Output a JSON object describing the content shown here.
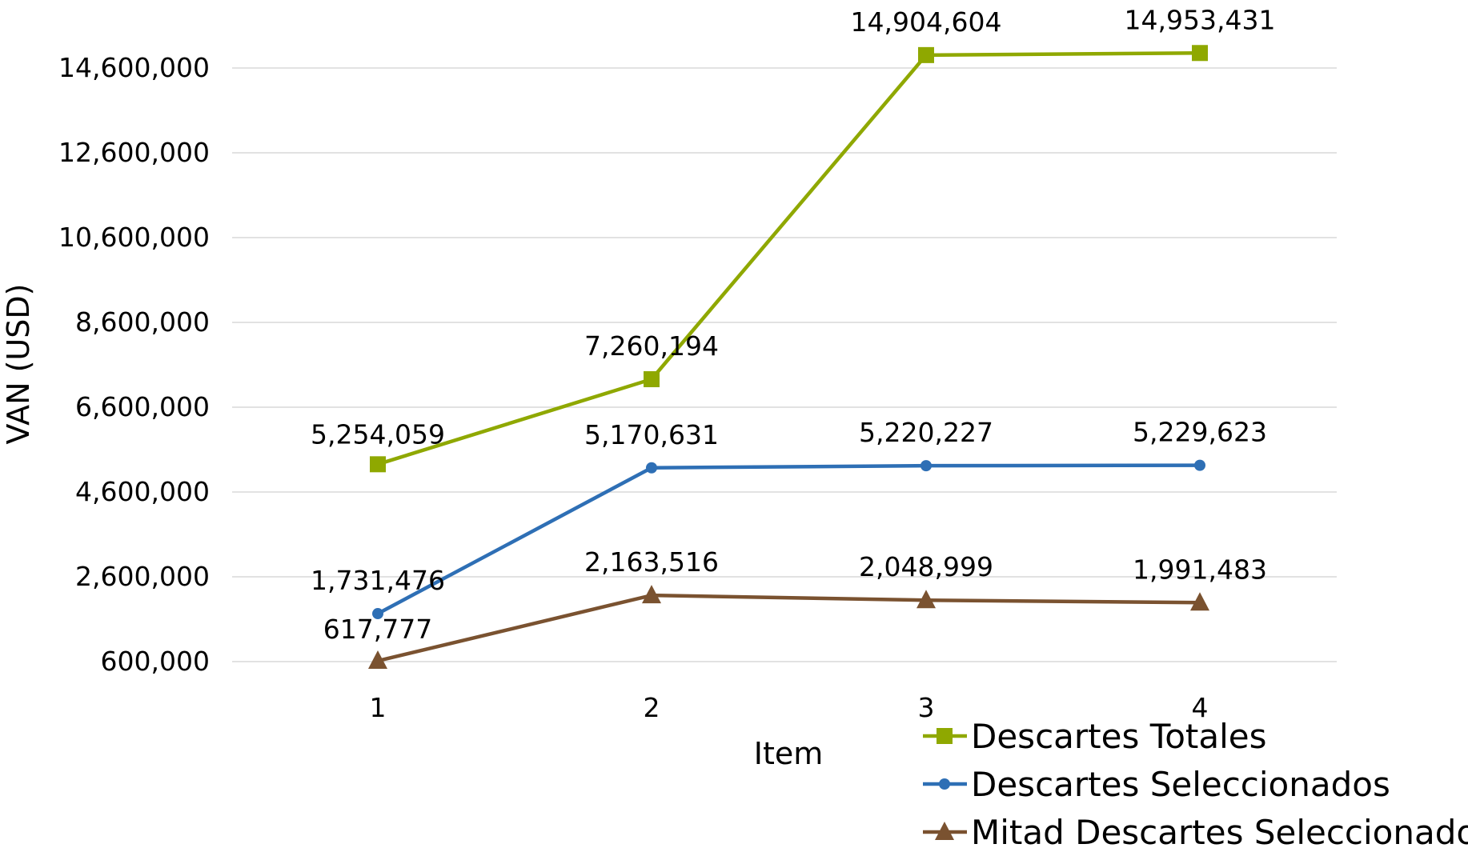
{
  "chart_data": {
    "type": "line",
    "title": "",
    "xlabel": "Item",
    "ylabel": "VAN  (USD)",
    "x": [
      1,
      2,
      3,
      4
    ],
    "x_tick_labels": [
      "1",
      "2",
      "3",
      "4"
    ],
    "ylim": [
      600000,
      14600000
    ],
    "y_ticks": [
      600000,
      2600000,
      4600000,
      6600000,
      8600000,
      10600000,
      12600000,
      14600000
    ],
    "y_tick_labels": [
      "600,000",
      "2,600,000",
      "4,600,000",
      "6,600,000",
      "8,600,000",
      "10,600,000",
      "12,600,000",
      "14,600,000"
    ],
    "grid": true,
    "legend_position": "bottom-right",
    "series": [
      {
        "name": "Descartes Totales",
        "color": "#8fa800",
        "marker": "square",
        "values": [
          5254059,
          7260194,
          14904604,
          14953431
        ],
        "labels": [
          "5,254,059",
          "7,260,194",
          "14,904,604",
          "14,953,431"
        ]
      },
      {
        "name": "Descartes Seleccionados",
        "color": "#2e6fb5",
        "marker": "circle",
        "values": [
          1731476,
          5170631,
          5220227,
          5229623
        ],
        "labels": [
          "1,731,476",
          "5,170,631",
          "5,220,227",
          "5,229,623"
        ]
      },
      {
        "name": "Mitad Descartes Seleccionados",
        "color": "#7a5230",
        "marker": "triangle",
        "values": [
          617777,
          2163516,
          2048999,
          1991483
        ],
        "labels": [
          "617,777",
          "2,163,516",
          "2,048,999",
          "1,991,483"
        ]
      }
    ]
  }
}
